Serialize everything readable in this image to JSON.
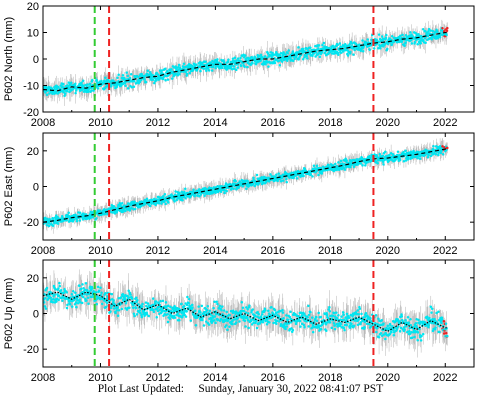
{
  "footer": {
    "label": "Plot Last Updated:",
    "timestamp": "Sunday, January 30, 2022 08:41:07 PST"
  },
  "colors": {
    "data": "#00e5f0",
    "error_bars": "#b4b4b4",
    "model": "#000000",
    "event_green": "#33cc33",
    "event_red": "#ee2222",
    "recent_points": "#ee2222"
  },
  "chart_data": [
    {
      "type": "scatter",
      "ylabel": "P602 North (mm)",
      "xlim": [
        2008,
        2023
      ],
      "ylim": [
        -20,
        20
      ],
      "xticks": [
        2008,
        2010,
        2012,
        2014,
        2016,
        2018,
        2020,
        2022
      ],
      "yticks": [
        -20,
        -10,
        0,
        10,
        20
      ],
      "event_lines": [
        {
          "x": 2009.8,
          "color": "green"
        },
        {
          "x": 2010.3,
          "color": "red"
        },
        {
          "x": 2019.5,
          "color": "red"
        }
      ],
      "series": [
        {
          "x": [
            2008.0,
            2008.5,
            2009.0,
            2009.5,
            2010.0,
            2010.5,
            2011.0,
            2011.5,
            2012.0,
            2012.5,
            2013.0,
            2013.5,
            2014.0,
            2014.5,
            2015.0,
            2015.5,
            2016.0,
            2016.5,
            2017.0,
            2017.5,
            2018.0,
            2018.5,
            2019.0,
            2019.5,
            2020.0,
            2020.5,
            2021.0,
            2021.5,
            2022.0
          ],
          "y": [
            -11.5,
            -12,
            -10.5,
            -11,
            -9.5,
            -9,
            -8,
            -7,
            -6.5,
            -5,
            -4,
            -3,
            -2,
            -2,
            -1,
            0,
            0,
            1,
            2,
            3,
            3.5,
            4,
            5,
            6,
            6.5,
            7.5,
            8,
            9,
            10
          ]
        }
      ]
    },
    {
      "type": "scatter",
      "ylabel": "P602 East (mm)",
      "xlim": [
        2008,
        2023
      ],
      "ylim": [
        -30,
        30
      ],
      "xticks": [
        2008,
        2010,
        2012,
        2014,
        2016,
        2018,
        2020,
        2022
      ],
      "yticks": [
        -20,
        0,
        20
      ],
      "event_lines": [
        {
          "x": 2009.8,
          "color": "green"
        },
        {
          "x": 2010.3,
          "color": "red"
        },
        {
          "x": 2019.5,
          "color": "red"
        }
      ],
      "series": [
        {
          "x": [
            2008.0,
            2008.5,
            2009.0,
            2009.5,
            2010.0,
            2010.5,
            2011.0,
            2011.5,
            2012.0,
            2012.5,
            2013.0,
            2013.5,
            2014.0,
            2014.5,
            2015.0,
            2015.5,
            2016.0,
            2016.5,
            2017.0,
            2017.5,
            2018.0,
            2018.5,
            2019.0,
            2019.5,
            2020.0,
            2020.5,
            2021.0,
            2021.5,
            2022.0
          ],
          "y": [
            -20,
            -19,
            -17.5,
            -16.5,
            -15,
            -13,
            -11,
            -9.5,
            -8,
            -6,
            -4.5,
            -3,
            -1.5,
            0,
            1.5,
            3,
            4.5,
            6,
            7.5,
            9,
            10.5,
            12,
            14,
            15.5,
            16,
            17,
            18,
            19.5,
            21
          ]
        }
      ]
    },
    {
      "type": "scatter",
      "ylabel": "P602 Up (mm)",
      "xlim": [
        2008,
        2023
      ],
      "ylim": [
        -30,
        30
      ],
      "xticks": [
        2008,
        2010,
        2012,
        2014,
        2016,
        2018,
        2020,
        2022
      ],
      "yticks": [
        -20,
        0,
        20
      ],
      "event_lines": [
        {
          "x": 2009.8,
          "color": "green"
        },
        {
          "x": 2010.3,
          "color": "red"
        },
        {
          "x": 2019.5,
          "color": "red"
        }
      ],
      "series": [
        {
          "x": [
            2008.0,
            2008.5,
            2009.0,
            2009.5,
            2010.0,
            2010.5,
            2011.0,
            2011.5,
            2012.0,
            2012.5,
            2013.0,
            2013.5,
            2014.0,
            2014.5,
            2015.0,
            2015.5,
            2016.0,
            2016.5,
            2017.0,
            2017.5,
            2018.0,
            2018.5,
            2019.0,
            2019.5,
            2020.0,
            2020.5,
            2021.0,
            2021.5,
            2022.0
          ],
          "y": [
            10,
            12,
            8,
            12,
            10,
            4,
            8,
            2,
            5,
            0,
            3,
            -2,
            1,
            -3,
            0,
            -4,
            -1,
            -5,
            -2,
            -6,
            -3,
            -5,
            -2,
            -6,
            -10,
            -5,
            -9,
            -4,
            -8
          ]
        }
      ]
    }
  ]
}
